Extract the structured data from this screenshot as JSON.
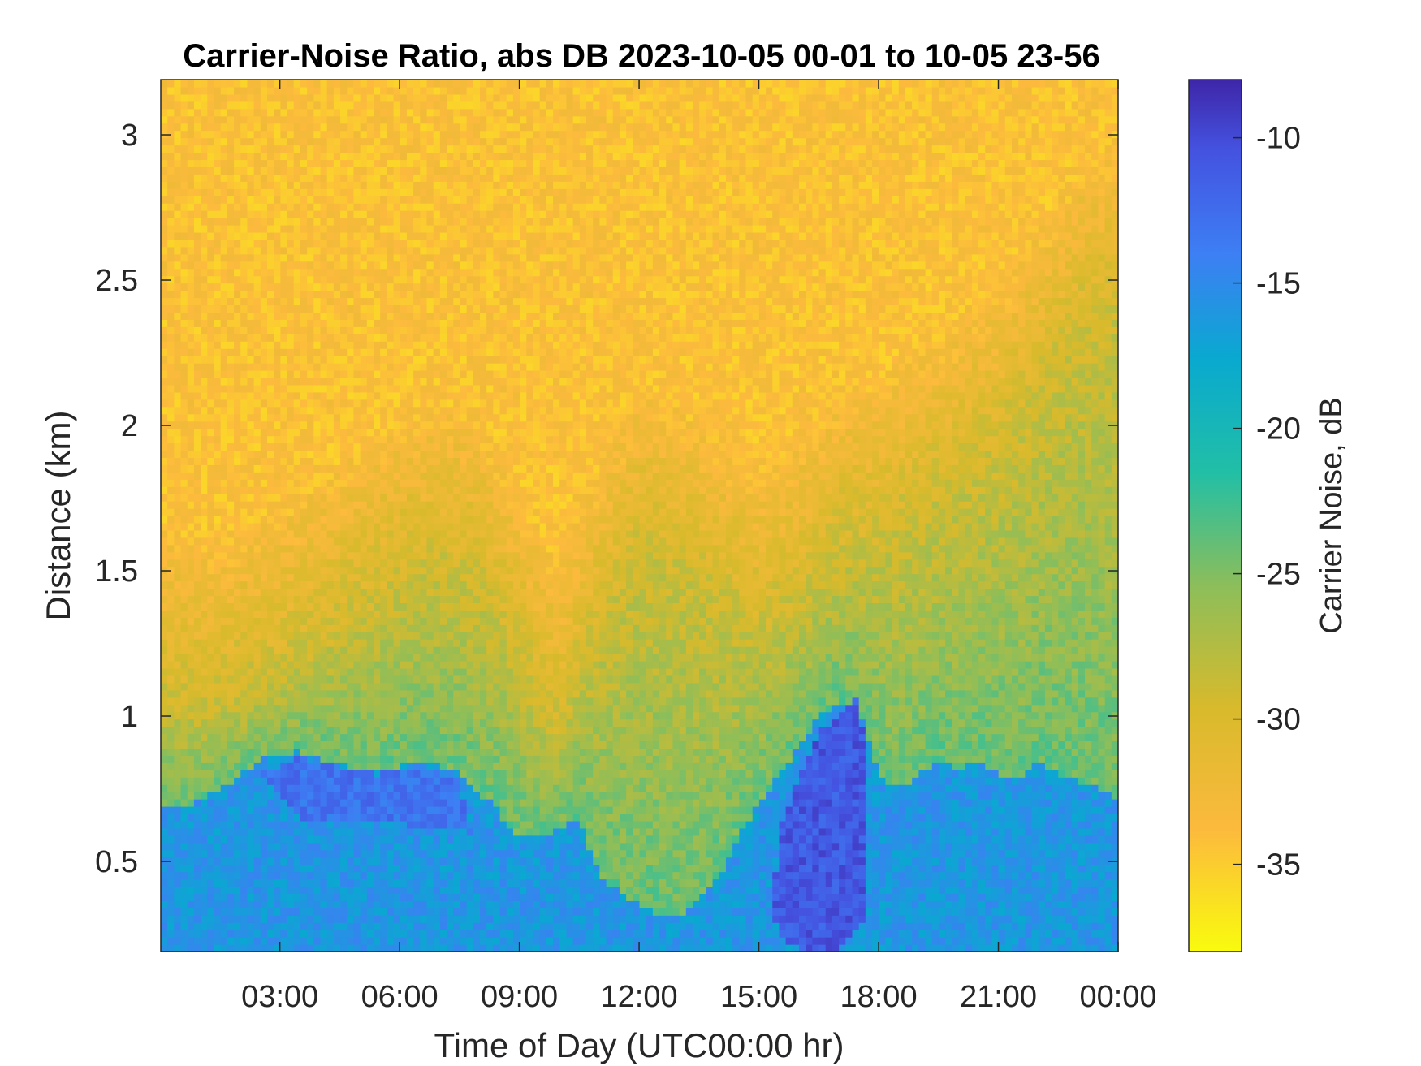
{
  "chart_data": {
    "type": "heatmap",
    "title": "Carrier-Noise Ratio, abs DB 2023-10-05 00-01 to 10-05 23-56",
    "xlabel": "Time of Day (UTC00:00 hr)",
    "ylabel": "Distance (km)",
    "colorbar_label": "Carrier Noise, dB",
    "colormap": "parula",
    "colormap_direction": "reversed",
    "x_unit": "hours",
    "xlim": [
      0.017,
      24.0
    ],
    "ylim": [
      0.19,
      3.19
    ],
    "clim": [
      -38,
      -8
    ],
    "x_ticks": [
      {
        "value": 3,
        "label": "03:00"
      },
      {
        "value": 6,
        "label": "06:00"
      },
      {
        "value": 9,
        "label": "09:00"
      },
      {
        "value": 12,
        "label": "12:00"
      },
      {
        "value": 15,
        "label": "15:00"
      },
      {
        "value": 18,
        "label": "18:00"
      },
      {
        "value": 21,
        "label": "21:00"
      },
      {
        "value": 24,
        "label": "00:00"
      }
    ],
    "y_ticks": [
      {
        "value": 0.5,
        "label": "0.5"
      },
      {
        "value": 1,
        "label": "1"
      },
      {
        "value": 1.5,
        "label": "1.5"
      },
      {
        "value": 2,
        "label": "2"
      },
      {
        "value": 2.5,
        "label": "2.5"
      },
      {
        "value": 3,
        "label": "3"
      }
    ],
    "colorbar_ticks": [
      {
        "value": -10,
        "label": "-10"
      },
      {
        "value": -15,
        "label": "-15"
      },
      {
        "value": -20,
        "label": "-20"
      },
      {
        "value": -25,
        "label": "-25"
      },
      {
        "value": -30,
        "label": "-30"
      },
      {
        "value": -35,
        "label": "-35"
      }
    ],
    "background_cnr_db": -34,
    "layers": [
      {
        "kind": "boundary_layer",
        "cnr_db": -16,
        "top_km": {
          "x": [
            0.017,
            0.8,
            1.5,
            2.5,
            3.5,
            4.5,
            5.5,
            6.5,
            7.5,
            8.3,
            9.0,
            9.8,
            10.5,
            11.0,
            11.5,
            12.0,
            12.5,
            13.0,
            13.5,
            14.0,
            14.5,
            15.0,
            15.5,
            16.0,
            16.5,
            17.0,
            17.5,
            18.0,
            18.5,
            19.0,
            19.5,
            20.0,
            20.5,
            21.0,
            21.5,
            22.0,
            22.5,
            23.0,
            23.5,
            24.0
          ],
          "y": [
            0.7,
            0.7,
            0.75,
            0.85,
            0.88,
            0.83,
            0.81,
            0.85,
            0.8,
            0.7,
            0.58,
            0.6,
            0.65,
            0.45,
            0.4,
            0.35,
            0.32,
            0.3,
            0.38,
            0.45,
            0.6,
            0.7,
            0.8,
            0.9,
            1.0,
            1.05,
            1.02,
            0.8,
            0.75,
            0.8,
            0.85,
            0.82,
            0.85,
            0.8,
            0.78,
            0.85,
            0.8,
            0.78,
            0.75,
            0.72
          ]
        }
      },
      {
        "kind": "transition_layer",
        "cnr_db": -24,
        "top_km": {
          "x": [
            0.017,
            1.5,
            3.0,
            4.5,
            6.0,
            7.0,
            8.0,
            9.0,
            10.0,
            11.0,
            12.0,
            13.0,
            14.0,
            15.0,
            16.0,
            17.0,
            18.0,
            19.0,
            20.0,
            21.0,
            22.0,
            23.0,
            24.0
          ],
          "y": [
            1.05,
            1.05,
            1.15,
            1.3,
            1.45,
            1.5,
            1.45,
            1.2,
            0.95,
            1.3,
            1.55,
            1.5,
            1.4,
            1.3,
            1.4,
            1.55,
            1.6,
            1.7,
            1.8,
            1.9,
            2.1,
            2.3,
            2.4
          ]
        }
      },
      {
        "kind": "strong_return",
        "cnr_db": -11,
        "region": {
          "x": [
            15.3,
            15.6,
            16.0,
            16.5,
            17.0,
            17.4,
            17.7,
            17.6,
            17.0,
            16.5,
            16.0,
            15.5,
            15.3
          ],
          "y": [
            0.35,
            0.65,
            0.78,
            0.95,
            1.0,
            1.08,
            0.9,
            0.3,
            0.2,
            0.2,
            0.2,
            0.25,
            0.35
          ]
        }
      },
      {
        "kind": "strong_return",
        "cnr_db": -13,
        "region": {
          "x": [
            2.5,
            3.5,
            4.5,
            5.5,
            6.5,
            7.5,
            7.8,
            6.5,
            5.0,
            3.5,
            2.5
          ],
          "y": [
            0.8,
            0.86,
            0.82,
            0.8,
            0.83,
            0.78,
            0.6,
            0.62,
            0.65,
            0.65,
            0.8
          ]
        }
      }
    ]
  }
}
